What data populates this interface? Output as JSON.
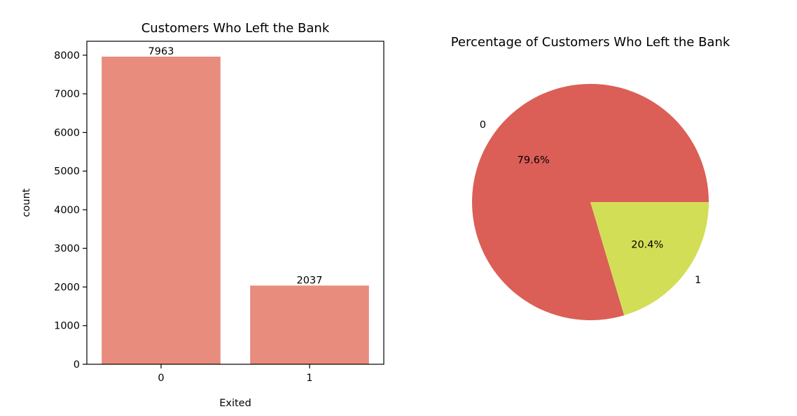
{
  "chart_data": [
    {
      "type": "bar",
      "title": "Customers Who Left the Bank",
      "xlabel": "Exited",
      "ylabel": "count",
      "categories": [
        "0",
        "1"
      ],
      "values": [
        7963,
        2037
      ],
      "value_labels": [
        "7963",
        "2037"
      ],
      "ylim": [
        0,
        8361
      ],
      "yticks": [
        0,
        1000,
        2000,
        3000,
        4000,
        5000,
        6000,
        7000,
        8000
      ],
      "ytick_labels": [
        "0",
        "1000",
        "2000",
        "3000",
        "4000",
        "5000",
        "6000",
        "7000",
        "8000"
      ],
      "grid": false,
      "colors": [
        "#e88c7d",
        "#e88c7d"
      ]
    },
    {
      "type": "pie",
      "title": "Percentage of Customers Who Left the Bank",
      "labels": [
        "0",
        "1"
      ],
      "values": [
        79.6,
        20.4
      ],
      "percent_labels": [
        "79.6%",
        "20.4%"
      ],
      "colors": [
        "#db5f57",
        "#d3de57"
      ]
    }
  ]
}
